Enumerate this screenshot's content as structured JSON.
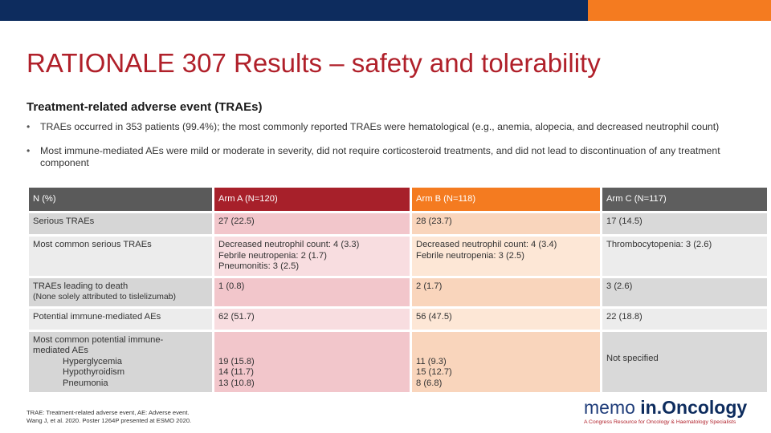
{
  "colors": {
    "navy": "#0d2c5e",
    "orange": "#f47b20",
    "red": "#a7202a"
  },
  "slide": {
    "title": "RATIONALE 307 Results – safety and tolerability",
    "subtitle": "Treatment-related adverse event (TRAEs)",
    "bullets": [
      "TRAEs occurred in 353 patients (99.4%); the most commonly reported TRAEs were hematological (e.g., anemia, alopecia, and decreased neutrophil count)",
      "Most immune-mediated AEs were mild or moderate in severity, did not require corticosteroid treatments, and did not lead to discontinuation of any treatment component"
    ],
    "bullet_glyph": "•"
  },
  "table": {
    "headers": [
      "N (%)",
      "Arm A (N=120)",
      "Arm B (N=118)",
      "Arm C (N=117)"
    ],
    "rows": [
      {
        "label": "Serious TRAEs",
        "a": "27 (22.5)",
        "b": "28 (23.7)",
        "c": "17 (14.5)"
      },
      {
        "label": "Most common serious TRAEs",
        "a": [
          "Decreased neutrophil count: 4 (3.3)",
          "Febrile neutropenia: 2 (1.7)",
          "Pneumonitis: 3 (2.5)"
        ],
        "b": [
          "Decreased neutrophil count: 4 (3.4)",
          "Febrile neutropenia: 3 (2.5)"
        ],
        "c": "Thrombocytopenia: 3 (2.6)"
      },
      {
        "label": "TRAEs leading to death",
        "sublabel": "(None solely attributed to tislelizumab)",
        "a": "1 (0.8)",
        "b": "2 (1.7)",
        "c": "3 (2.6)"
      },
      {
        "label": "Potential immune-mediated AEs",
        "a": "62 (51.7)",
        "b": "56 (47.5)",
        "c": "22 (18.8)"
      },
      {
        "label": "Most common potential immune-mediated AEs",
        "items": [
          "Hyperglycemia",
          "Hypothyroidism",
          "Pneumonia"
        ],
        "a": [
          "19 (15.8)",
          "14 (11.7)",
          "13 (10.8)"
        ],
        "b": [
          "11 (9.3)",
          "15 (12.7)",
          "8 (6.8)"
        ],
        "c": "Not specified"
      }
    ]
  },
  "footnote": {
    "line1": "TRAE: Treatment-related adverse event, AE: Adverse event.",
    "line2": "Wang J, et al. 2020. Poster 1264P presented at ESMO 2020."
  },
  "logo": {
    "word1": "memo",
    "word2": "in.Oncology",
    "tagline": "A Congress Resource for Oncology & Haematology Specialists"
  }
}
